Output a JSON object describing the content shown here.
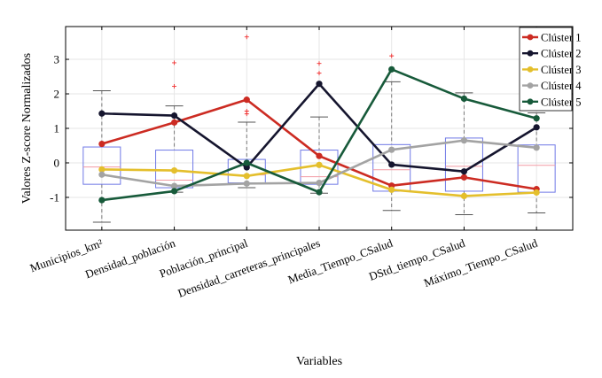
{
  "chart_data": {
    "type": "line",
    "xlabel": "Variables",
    "ylabel": "Valores Z-score Normalizados",
    "ylim": [
      -1.95,
      3.95
    ],
    "yticks": [
      -1,
      0,
      1,
      2,
      3
    ],
    "grid": true,
    "legend_position": "top-right",
    "categories": [
      "Municipios_km²",
      "Densidad_población",
      "Población_principal",
      "Densidad_carreteras_principales",
      "Media_Tiempo_CSalud",
      "DStd_tiempo_CSalud",
      "Máximo_Tiempo_CSalud"
    ],
    "series": [
      {
        "name": "Clúster 1",
        "color": "#cc2b22",
        "values": [
          0.55,
          1.17,
          1.83,
          0.2,
          -0.66,
          -0.42,
          -0.76
        ]
      },
      {
        "name": "Clúster 2",
        "color": "#15152e",
        "values": [
          1.43,
          1.37,
          -0.13,
          2.29,
          -0.05,
          -0.25,
          1.03
        ]
      },
      {
        "name": "Clúster 3",
        "color": "#e4bf2c",
        "values": [
          -0.19,
          -0.22,
          -0.38,
          -0.06,
          -0.78,
          -0.96,
          -0.86
        ]
      },
      {
        "name": "Clúster 4",
        "color": "#a3a3a3",
        "values": [
          -0.34,
          -0.67,
          -0.6,
          -0.58,
          0.38,
          0.65,
          0.44
        ]
      },
      {
        "name": "Clúster 5",
        "color": "#175a3a",
        "values": [
          -1.08,
          -0.82,
          0.0,
          -0.85,
          2.71,
          1.86,
          1.29
        ]
      }
    ],
    "boxplots": [
      {
        "category": "Municipios_km²",
        "whisker_low": -1.72,
        "q1": -0.62,
        "median": -0.12,
        "q3": 0.46,
        "whisker_high": 2.09,
        "outliers": []
      },
      {
        "category": "Densidad_población",
        "whisker_low": -0.85,
        "q1": -0.72,
        "median": -0.5,
        "q3": 0.37,
        "whisker_high": 1.65,
        "outliers": [
          2.22,
          2.9
        ]
      },
      {
        "category": "Población_principal",
        "whisker_low": -0.72,
        "q1": -0.58,
        "median": -0.35,
        "q3": 0.1,
        "whisker_high": 1.18,
        "outliers": [
          1.42,
          1.5,
          3.65
        ]
      },
      {
        "category": "Densidad_carreteras_principales",
        "whisker_low": -0.88,
        "q1": -0.62,
        "median": -0.4,
        "q3": 0.37,
        "whisker_high": 1.33,
        "outliers": [
          2.6,
          2.88
        ]
      },
      {
        "category": "Media_Tiempo_CSalud",
        "whisker_low": -1.38,
        "q1": -0.82,
        "median": -0.2,
        "q3": 0.53,
        "whisker_high": 2.35,
        "outliers": [
          3.1
        ]
      },
      {
        "category": "DStd_tiempo_CSalud",
        "whisker_low": -1.5,
        "q1": -0.82,
        "median": -0.1,
        "q3": 0.72,
        "whisker_high": 2.03,
        "outliers": []
      },
      {
        "category": "Máximo_Tiempo_CSalud",
        "whisker_low": -1.45,
        "q1": -0.85,
        "median": -0.07,
        "q3": 0.52,
        "whisker_high": 1.45,
        "outliers": []
      }
    ],
    "box_color": "#6f79e6",
    "median_color": "#f29aa3",
    "whisker_color": "#7a7a7a",
    "outlier_color": "#f03030"
  }
}
